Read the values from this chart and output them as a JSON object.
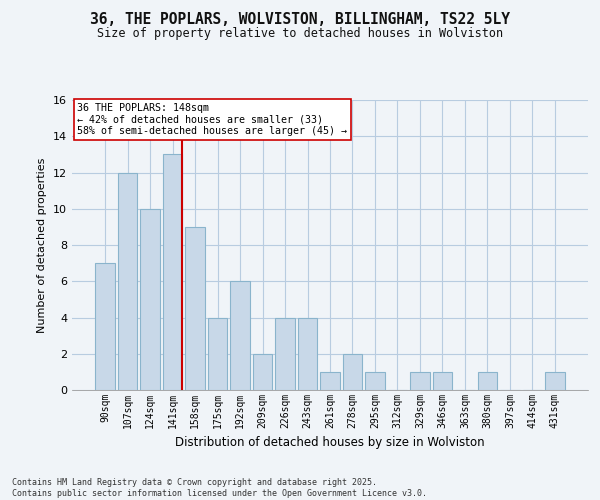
{
  "title": "36, THE POPLARS, WOLVISTON, BILLINGHAM, TS22 5LY",
  "subtitle": "Size of property relative to detached houses in Wolviston",
  "xlabel": "Distribution of detached houses by size in Wolviston",
  "ylabel": "Number of detached properties",
  "categories": [
    "90sqm",
    "107sqm",
    "124sqm",
    "141sqm",
    "158sqm",
    "175sqm",
    "192sqm",
    "209sqm",
    "226sqm",
    "243sqm",
    "261sqm",
    "278sqm",
    "295sqm",
    "312sqm",
    "329sqm",
    "346sqm",
    "363sqm",
    "380sqm",
    "397sqm",
    "414sqm",
    "431sqm"
  ],
  "values": [
    7,
    12,
    10,
    13,
    9,
    4,
    6,
    2,
    4,
    4,
    1,
    2,
    1,
    0,
    1,
    1,
    0,
    1,
    0,
    0,
    1
  ],
  "bar_color": "#c8d8e8",
  "bar_edge_color": "#8ab4cc",
  "vline_color": "#cc0000",
  "vline_x_index": 3,
  "annotation_text": "36 THE POPLARS: 148sqm\n← 42% of detached houses are smaller (33)\n58% of semi-detached houses are larger (45) →",
  "annotation_box_color": "#ffffff",
  "annotation_box_edge_color": "#cc0000",
  "footer_text": "Contains HM Land Registry data © Crown copyright and database right 2025.\nContains public sector information licensed under the Open Government Licence v3.0.",
  "bg_color": "#f0f4f8",
  "grid_color": "#b8cce0",
  "ylim": [
    0,
    16
  ],
  "yticks": [
    0,
    2,
    4,
    6,
    8,
    10,
    12,
    14,
    16
  ]
}
